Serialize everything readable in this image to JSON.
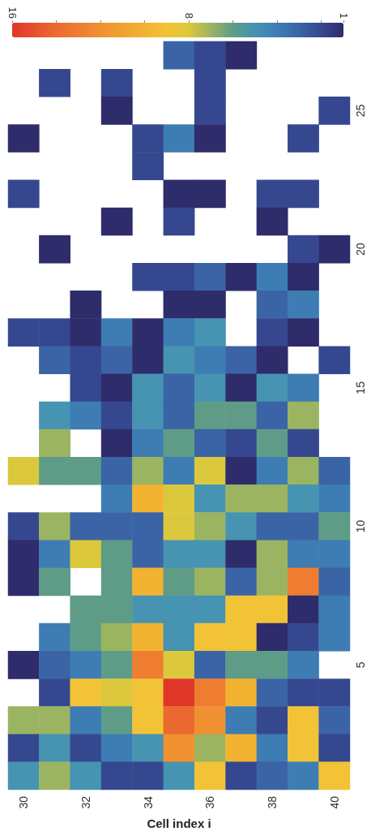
{
  "chart_data": {
    "type": "heatmap",
    "xlabel": "Cell index i",
    "categories": [
      "30",
      null,
      "32",
      null,
      "34",
      null,
      "36",
      null,
      "38",
      null,
      "40"
    ],
    "y_categories": [
      null,
      null,
      "25",
      null,
      null,
      null,
      null,
      "20",
      null,
      null,
      null,
      null,
      "15",
      null,
      null,
      null,
      null,
      "10",
      null,
      null,
      null,
      null,
      "5",
      null,
      null,
      null,
      null
    ],
    "cells": [
      [
        null,
        null,
        null,
        null,
        null,
        3,
        2,
        1,
        null,
        null,
        null
      ],
      [
        null,
        2,
        null,
        2,
        null,
        null,
        2,
        null,
        null,
        null,
        null
      ],
      [
        null,
        null,
        null,
        1,
        null,
        null,
        2,
        null,
        null,
        null,
        2
      ],
      [
        1,
        null,
        null,
        null,
        2,
        4,
        1,
        null,
        null,
        2,
        null
      ],
      [
        null,
        null,
        null,
        null,
        2,
        null,
        null,
        null,
        null,
        null,
        null
      ],
      [
        2,
        null,
        null,
        null,
        null,
        1,
        1,
        null,
        2,
        2,
        null
      ],
      [
        null,
        null,
        null,
        1,
        null,
        2,
        null,
        null,
        1,
        null,
        null
      ],
      [
        null,
        1,
        null,
        null,
        null,
        null,
        null,
        null,
        null,
        2,
        1
      ],
      [
        null,
        null,
        null,
        null,
        2,
        2,
        3,
        1,
        4,
        1,
        null
      ],
      [
        null,
        null,
        1,
        null,
        null,
        1,
        1,
        null,
        3,
        4,
        null
      ],
      [
        2,
        2,
        1,
        4,
        1,
        4,
        5,
        null,
        2,
        1,
        null
      ],
      [
        null,
        3,
        2,
        3,
        1,
        5,
        4,
        3,
        1,
        null,
        2
      ],
      [
        null,
        null,
        2,
        1,
        5,
        3,
        5,
        1,
        5,
        4,
        null
      ],
      [
        null,
        5,
        4,
        2,
        5,
        3,
        6,
        6,
        3,
        7,
        null
      ],
      [
        null,
        7,
        null,
        1,
        4,
        6,
        3,
        2,
        6,
        2,
        null
      ],
      [
        8,
        6,
        6,
        3,
        7,
        4,
        8,
        1,
        4,
        7,
        3
      ],
      [
        null,
        null,
        null,
        4,
        10,
        8,
        5,
        7,
        7,
        5,
        4
      ],
      [
        2,
        7,
        3,
        3,
        3,
        8,
        7,
        5,
        3,
        3,
        6
      ],
      [
        1,
        4,
        8,
        6,
        3,
        5,
        5,
        1,
        7,
        4,
        4
      ],
      [
        1,
        6,
        null,
        6,
        10,
        6,
        7,
        3,
        7,
        13,
        3
      ],
      [
        null,
        null,
        6,
        6,
        5,
        5,
        5,
        9,
        9,
        1,
        4
      ],
      [
        null,
        4,
        6,
        7,
        10,
        5,
        9,
        9,
        1,
        2,
        4
      ],
      [
        1,
        3,
        4,
        6,
        13,
        8,
        3,
        6,
        6,
        4,
        null
      ],
      [
        null,
        2,
        9,
        8,
        9,
        16,
        13,
        10,
        3,
        2,
        2
      ],
      [
        7,
        7,
        4,
        6,
        9,
        14,
        12,
        4,
        2,
        9,
        3
      ],
      [
        2,
        5,
        2,
        4,
        5,
        12,
        7,
        10,
        4,
        9,
        2
      ],
      [
        5,
        7,
        5,
        2,
        2,
        5,
        9,
        2,
        3,
        4,
        9
      ]
    ],
    "clim": [
      1,
      16
    ],
    "cticks": [
      16,
      {
        "value": 14,
        "label": null
      },
      {
        "value": 12,
        "label": null
      },
      {
        "value": 10,
        "label": null
      },
      8,
      {
        "value": 6,
        "label": null
      },
      {
        "value": 4,
        "label": null
      },
      {
        "value": 2,
        "label": null
      },
      1
    ]
  }
}
